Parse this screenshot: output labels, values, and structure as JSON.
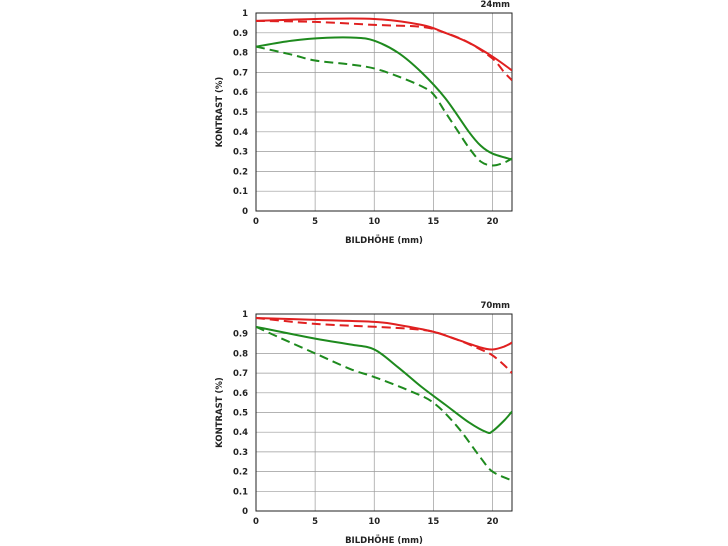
{
  "chart_data": [
    {
      "type": "line",
      "title": "24mm",
      "xlabel": "BILDHÖHE (mm)",
      "ylabel": "KONTRAST (%)",
      "xlim": [
        0,
        21.65
      ],
      "ylim": [
        0,
        1
      ],
      "xticks": [
        "0",
        "5",
        "10",
        "15",
        "20"
      ],
      "yticks": [
        "0",
        "0.1",
        "0.2",
        "0.3",
        "0.4",
        "0.5",
        "0.6",
        "0.7",
        "0.8",
        "0.9",
        "1"
      ],
      "grid": true,
      "series": [
        {
          "color": "#e02020",
          "style": "solid",
          "x": [
            0,
            5,
            10,
            14,
            16,
            18,
            20,
            21.65
          ],
          "y": [
            0.96,
            0.97,
            0.97,
            0.94,
            0.9,
            0.85,
            0.78,
            0.71
          ]
        },
        {
          "color": "#e02020",
          "style": "dashed",
          "x": [
            0,
            5,
            10,
            14,
            16,
            18,
            20,
            21,
            21.65
          ],
          "y": [
            0.96,
            0.955,
            0.94,
            0.93,
            0.9,
            0.85,
            0.77,
            0.7,
            0.66
          ]
        },
        {
          "color": "#1e8a1e",
          "style": "solid",
          "x": [
            0,
            3,
            6,
            8.5,
            10,
            12,
            14,
            16,
            18,
            19,
            20,
            21.65
          ],
          "y": [
            0.83,
            0.86,
            0.875,
            0.875,
            0.86,
            0.8,
            0.7,
            0.57,
            0.4,
            0.33,
            0.29,
            0.26
          ]
        },
        {
          "color": "#1e8a1e",
          "style": "dashed",
          "x": [
            0,
            3,
            5,
            8,
            10,
            12,
            14,
            15,
            16,
            17,
            18,
            19,
            20,
            21,
            21.65
          ],
          "y": [
            0.83,
            0.79,
            0.76,
            0.74,
            0.72,
            0.68,
            0.63,
            0.59,
            0.5,
            0.41,
            0.32,
            0.25,
            0.23,
            0.245,
            0.265
          ]
        }
      ]
    },
    {
      "type": "line",
      "title": "70mm",
      "xlabel": "BILDHÖHE (mm)",
      "ylabel": "KONTRAST (%)",
      "xlim": [
        0,
        21.65
      ],
      "ylim": [
        0,
        1
      ],
      "xticks": [
        "0",
        "5",
        "10",
        "15",
        "20"
      ],
      "yticks": [
        "0",
        "0.1",
        "0.2",
        "0.3",
        "0.4",
        "0.5",
        "0.6",
        "0.7",
        "0.8",
        "0.9",
        "1"
      ],
      "grid": true,
      "series": [
        {
          "color": "#e02020",
          "style": "solid",
          "x": [
            0,
            5,
            10,
            12,
            15,
            17,
            19,
            20,
            21,
            21.65
          ],
          "y": [
            0.98,
            0.97,
            0.96,
            0.945,
            0.91,
            0.87,
            0.83,
            0.82,
            0.835,
            0.855
          ]
        },
        {
          "color": "#e02020",
          "style": "dashed",
          "x": [
            0,
            5,
            10,
            13,
            15,
            17,
            19,
            20,
            21,
            21.65
          ],
          "y": [
            0.98,
            0.95,
            0.935,
            0.925,
            0.91,
            0.87,
            0.82,
            0.79,
            0.74,
            0.7
          ]
        },
        {
          "color": "#1e8a1e",
          "style": "solid",
          "x": [
            0,
            5,
            8,
            10,
            12,
            14,
            16,
            18,
            19.5,
            20,
            21,
            21.65
          ],
          "y": [
            0.935,
            0.875,
            0.845,
            0.82,
            0.73,
            0.63,
            0.54,
            0.45,
            0.4,
            0.405,
            0.46,
            0.505
          ]
        },
        {
          "color": "#1e8a1e",
          "style": "dashed",
          "x": [
            0,
            2,
            5,
            8,
            10,
            13,
            15,
            17,
            19,
            20,
            21.65
          ],
          "y": [
            0.935,
            0.88,
            0.8,
            0.72,
            0.68,
            0.61,
            0.55,
            0.43,
            0.27,
            0.2,
            0.155
          ]
        }
      ]
    }
  ]
}
